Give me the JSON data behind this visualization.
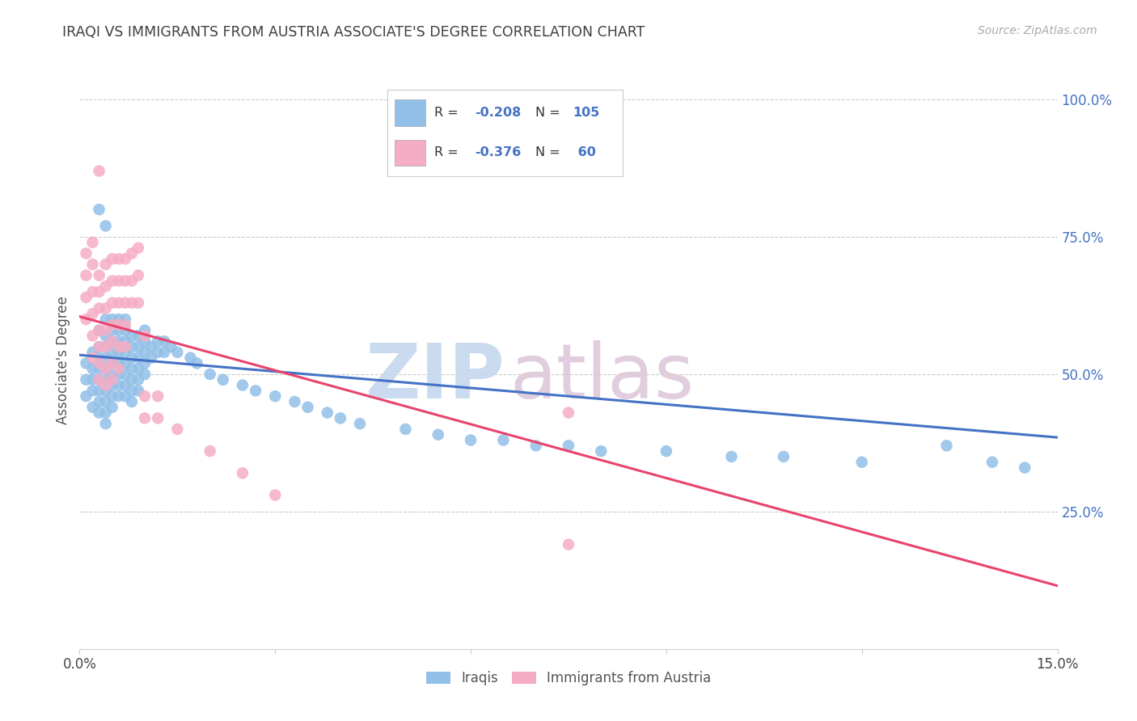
{
  "title": "IRAQI VS IMMIGRANTS FROM AUSTRIA ASSOCIATE'S DEGREE CORRELATION CHART",
  "source": "Source: ZipAtlas.com",
  "ylabel": "Associate's Degree",
  "xlim": [
    0.0,
    0.15
  ],
  "ylim": [
    0.0,
    1.05
  ],
  "xtick_positions": [
    0.0,
    0.03,
    0.06,
    0.09,
    0.12,
    0.15
  ],
  "xticklabels": [
    "0.0%",
    "",
    "",
    "",
    "",
    "15.0%"
  ],
  "ytick_positions": [
    0.0,
    0.25,
    0.5,
    0.75,
    1.0
  ],
  "yticklabels_right": [
    "",
    "25.0%",
    "50.0%",
    "75.0%",
    "100.0%"
  ],
  "blue_color": "#92c0e8",
  "pink_color": "#f5adc5",
  "blue_line_color": "#4472c4",
  "pink_line_color": "#e8446c",
  "blue_trend_x": [
    0.0,
    0.15
  ],
  "blue_trend_y": [
    0.535,
    0.385
  ],
  "pink_trend_x": [
    0.0,
    0.15
  ],
  "pink_trend_y": [
    0.605,
    0.115
  ],
  "watermark_zip_color": "#c5d8ef",
  "watermark_atlas_color": "#ddc8da",
  "legend_blue_r": "-0.208",
  "legend_blue_n": "105",
  "legend_pink_r": "-0.376",
  "legend_pink_n": " 60",
  "text_color": "#4472c4",
  "title_color": "#404040",
  "source_color": "#aaaaaa",
  "grid_color": "#cccccc",
  "background": "#ffffff",
  "blue_points_x": [
    0.001,
    0.001,
    0.001,
    0.002,
    0.002,
    0.002,
    0.002,
    0.002,
    0.003,
    0.003,
    0.003,
    0.003,
    0.003,
    0.003,
    0.003,
    0.003,
    0.003,
    0.004,
    0.004,
    0.004,
    0.004,
    0.004,
    0.004,
    0.004,
    0.004,
    0.004,
    0.004,
    0.004,
    0.005,
    0.005,
    0.005,
    0.005,
    0.005,
    0.005,
    0.005,
    0.005,
    0.005,
    0.006,
    0.006,
    0.006,
    0.006,
    0.006,
    0.006,
    0.006,
    0.006,
    0.007,
    0.007,
    0.007,
    0.007,
    0.007,
    0.007,
    0.007,
    0.007,
    0.008,
    0.008,
    0.008,
    0.008,
    0.008,
    0.008,
    0.008,
    0.009,
    0.009,
    0.009,
    0.009,
    0.009,
    0.009,
    0.01,
    0.01,
    0.01,
    0.01,
    0.01,
    0.011,
    0.011,
    0.012,
    0.012,
    0.013,
    0.013,
    0.014,
    0.015,
    0.017,
    0.018,
    0.02,
    0.022,
    0.025,
    0.027,
    0.03,
    0.033,
    0.035,
    0.038,
    0.04,
    0.043,
    0.05,
    0.055,
    0.06,
    0.065,
    0.07,
    0.075,
    0.08,
    0.09,
    0.1,
    0.108,
    0.12,
    0.133,
    0.14,
    0.145
  ],
  "blue_points_y": [
    0.52,
    0.49,
    0.46,
    0.54,
    0.51,
    0.49,
    0.47,
    0.44,
    0.58,
    0.55,
    0.53,
    0.51,
    0.49,
    0.47,
    0.45,
    0.43,
    0.8,
    0.6,
    0.57,
    0.55,
    0.53,
    0.51,
    0.49,
    0.47,
    0.45,
    0.43,
    0.41,
    0.77,
    0.6,
    0.58,
    0.56,
    0.54,
    0.52,
    0.5,
    0.48,
    0.46,
    0.44,
    0.6,
    0.58,
    0.56,
    0.54,
    0.52,
    0.5,
    0.48,
    0.46,
    0.6,
    0.58,
    0.56,
    0.54,
    0.52,
    0.5,
    0.48,
    0.46,
    0.57,
    0.55,
    0.53,
    0.51,
    0.49,
    0.47,
    0.45,
    0.57,
    0.55,
    0.53,
    0.51,
    0.49,
    0.47,
    0.58,
    0.56,
    0.54,
    0.52,
    0.5,
    0.55,
    0.53,
    0.56,
    0.54,
    0.56,
    0.54,
    0.55,
    0.54,
    0.53,
    0.52,
    0.5,
    0.49,
    0.48,
    0.47,
    0.46,
    0.45,
    0.44,
    0.43,
    0.42,
    0.41,
    0.4,
    0.39,
    0.38,
    0.38,
    0.37,
    0.37,
    0.36,
    0.36,
    0.35,
    0.35,
    0.34,
    0.37,
    0.34,
    0.33
  ],
  "pink_points_x": [
    0.001,
    0.001,
    0.001,
    0.001,
    0.002,
    0.002,
    0.002,
    0.002,
    0.002,
    0.002,
    0.003,
    0.003,
    0.003,
    0.003,
    0.003,
    0.003,
    0.003,
    0.003,
    0.004,
    0.004,
    0.004,
    0.004,
    0.004,
    0.004,
    0.004,
    0.005,
    0.005,
    0.005,
    0.005,
    0.005,
    0.005,
    0.005,
    0.006,
    0.006,
    0.006,
    0.006,
    0.006,
    0.006,
    0.007,
    0.007,
    0.007,
    0.007,
    0.007,
    0.008,
    0.008,
    0.008,
    0.009,
    0.009,
    0.009,
    0.01,
    0.01,
    0.01,
    0.012,
    0.012,
    0.015,
    0.02,
    0.025,
    0.03,
    0.075,
    0.075
  ],
  "pink_points_y": [
    0.72,
    0.68,
    0.64,
    0.6,
    0.74,
    0.7,
    0.65,
    0.61,
    0.57,
    0.53,
    0.68,
    0.65,
    0.62,
    0.58,
    0.55,
    0.52,
    0.49,
    0.87,
    0.7,
    0.66,
    0.62,
    0.58,
    0.55,
    0.51,
    0.48,
    0.71,
    0.67,
    0.63,
    0.59,
    0.56,
    0.52,
    0.49,
    0.71,
    0.67,
    0.63,
    0.59,
    0.55,
    0.51,
    0.71,
    0.67,
    0.63,
    0.59,
    0.55,
    0.72,
    0.67,
    0.63,
    0.73,
    0.68,
    0.63,
    0.57,
    0.46,
    0.42,
    0.46,
    0.42,
    0.4,
    0.36,
    0.32,
    0.28,
    0.43,
    0.19
  ]
}
